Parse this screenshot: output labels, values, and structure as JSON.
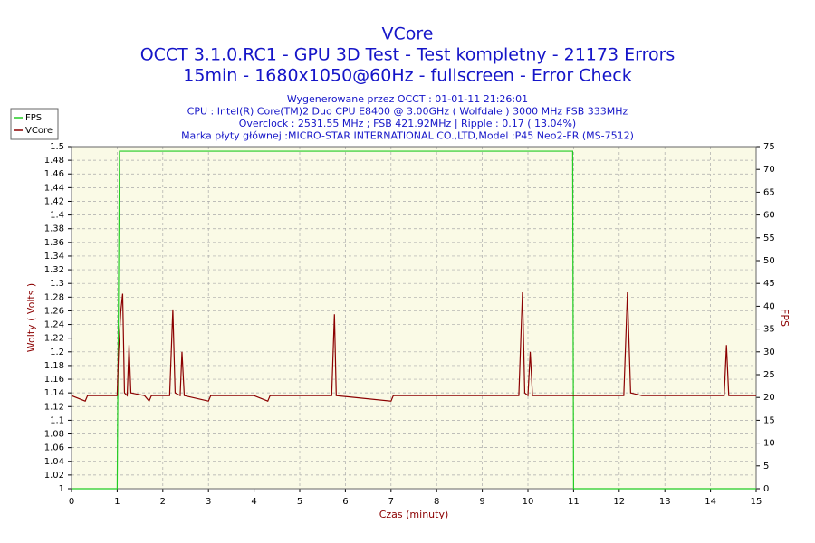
{
  "chart_data": {
    "type": "line",
    "title": [
      "VCore",
      "OCCT 3.1.0.RC1 - GPU 3D Test - Test kompletny - 21173 Errors",
      "15min - 1680x1050@60Hz - fullscreen - Error Check"
    ],
    "subtitle": [
      "Wygenerowane przez OCCT : 01-01-11 21:26:01",
      "CPU : Intel(R) Core(TM)2 Duo CPU E8400 @ 3.00GHz ( Wolfdale ) 3000 MHz FSB 333MHz",
      "Overclock : 2531.55 MHz ; FSB 421.92MHz | Ripple : 0.17 ( 13.04%)",
      "Marka płyty głównej :MICRO-STAR INTERNATIONAL CO.,LTD,Model :P45 Neo2-FR (MS-7512)"
    ],
    "xlabel": "Czas (minuty)",
    "ylabel": "Wolty ( Volts )",
    "y2label": "FPS",
    "xlim": [
      0,
      15
    ],
    "xticks": [
      0,
      1,
      2,
      3,
      4,
      5,
      6,
      7,
      8,
      9,
      10,
      11,
      12,
      13,
      14,
      15
    ],
    "ylim": [
      1,
      1.5
    ],
    "yticks": [
      1,
      1.02,
      1.04,
      1.06,
      1.08,
      1.1,
      1.12,
      1.14,
      1.16,
      1.18,
      1.2,
      1.22,
      1.24,
      1.26,
      1.28,
      1.3,
      1.32,
      1.34,
      1.36,
      1.38,
      1.4,
      1.42,
      1.44,
      1.46,
      1.48,
      1.5
    ],
    "y2lim": [
      0,
      75
    ],
    "y2ticks": [
      0,
      5,
      10,
      15,
      20,
      25,
      30,
      35,
      40,
      45,
      50,
      55,
      60,
      65,
      70,
      75
    ],
    "grid": true,
    "legend": "upper left",
    "series": [
      {
        "name": "FPS",
        "color": "#22cc22",
        "axis": "y2",
        "x": [
          0,
          1.0,
          1.05,
          10.98,
          11.0,
          15
        ],
        "values": [
          0,
          0,
          74,
          74,
          0,
          0
        ]
      },
      {
        "name": "VCore",
        "color": "#8b0000",
        "x": [
          0,
          0.3,
          0.35,
          0.9,
          1.0,
          1.03,
          1.08,
          1.12,
          1.16,
          1.22,
          1.26,
          1.3,
          1.6,
          1.7,
          1.75,
          2.15,
          2.22,
          2.27,
          2.38,
          2.42,
          2.47,
          3.0,
          3.05,
          4.0,
          4.3,
          4.35,
          5.7,
          5.76,
          5.8,
          7.0,
          7.05,
          8.5,
          9.8,
          9.88,
          9.93,
          10.0,
          10.05,
          10.1,
          11.0,
          12.1,
          12.18,
          12.25,
          12.5,
          13.5,
          14.3,
          14.35,
          14.4,
          15
        ],
        "values": [
          1.136,
          1.128,
          1.136,
          1.136,
          1.136,
          1.2,
          1.26,
          1.285,
          1.14,
          1.136,
          1.21,
          1.14,
          1.136,
          1.128,
          1.136,
          1.136,
          1.262,
          1.14,
          1.136,
          1.2,
          1.136,
          1.128,
          1.136,
          1.136,
          1.128,
          1.136,
          1.136,
          1.255,
          1.136,
          1.128,
          1.136,
          1.136,
          1.136,
          1.287,
          1.14,
          1.136,
          1.2,
          1.136,
          1.136,
          1.136,
          1.287,
          1.14,
          1.136,
          1.136,
          1.136,
          1.21,
          1.136,
          1.136
        ]
      }
    ]
  }
}
